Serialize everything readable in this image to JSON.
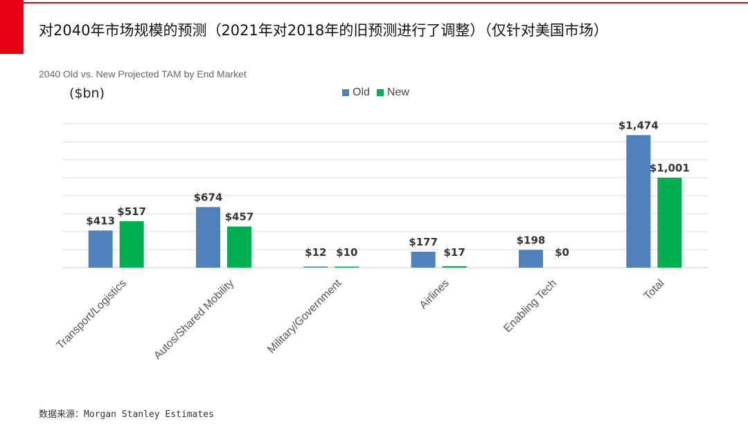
{
  "page": {
    "title": "对2040年市场规模的预测（2021年对2018年的旧预测进行了调整）（仅针对美国市场）",
    "source": "数据来源：Morgan Stanley Estimates",
    "accent_color": "#e60012"
  },
  "chart_data": {
    "type": "bar",
    "title": "2040 Old vs. New Projected TAM by End Market",
    "unit_label": "($bn)",
    "categories": [
      "Transport/Logistics",
      "Autos/Shared Mobility",
      "Military/Government",
      "Airlines",
      "Enabling Tech",
      "Total"
    ],
    "series": [
      {
        "name": "Old",
        "color": "#4f81bd",
        "values": [
          413,
          674,
          12,
          177,
          198,
          1474
        ],
        "labels": [
          "$413",
          "$674",
          "$12",
          "$177",
          "$198",
          "$1,474"
        ]
      },
      {
        "name": "New",
        "color": "#00b050",
        "values": [
          517,
          457,
          10,
          17,
          0,
          1001
        ],
        "labels": [
          "$517",
          "$457",
          "$10",
          "$17",
          "$0",
          "$1,001"
        ]
      }
    ],
    "ylim": [
      0,
      1600
    ],
    "grid": true,
    "legend_position": "top"
  }
}
